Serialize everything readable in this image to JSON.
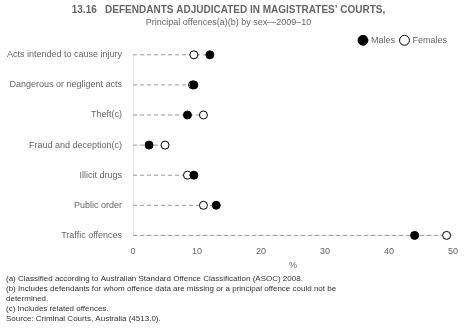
{
  "chart_data": {
    "type": "dot",
    "orientation": "horizontal",
    "title": "13.16   DEFENDANTS ADJUDICATED IN MAGISTRATES’ COURTS,",
    "subtitle": "Principal offences(a)(b) by sex—2009–10",
    "categories": [
      "Acts intended to cause injury",
      "Dangerous or negligent acts",
      "Theft(c)",
      "Fraud and deception(c)",
      "Illicit drugs",
      "Public order",
      "Traffic offences"
    ],
    "series": [
      {
        "name": "Males",
        "color": "black",
        "marker": "circle",
        "values": [
          12.0,
          9.5,
          8.5,
          2.5,
          9.5,
          13.0,
          44.0
        ]
      },
      {
        "name": "Females",
        "color": "white",
        "marker": "circle",
        "values": [
          9.5,
          9.3,
          11.0,
          5.0,
          8.5,
          11.0,
          49.0
        ]
      }
    ],
    "color": "#999999",
    "line_style": "dashed",
    "xlim": [
      0,
      50
    ],
    "xticks": [
      0,
      10,
      20,
      30,
      40,
      50
    ],
    "xlabel": "%",
    "grid": false,
    "legend": "upper right",
    "annotations": [
      "(a) Classified according to Australian Standard Offence Classification (ASOC) 2008.",
      "(b) Includes defendants for whom offence data are missing or a principal offence could not be",
      "determined.",
      "(c) Includes related offences.",
      "Source: Criminal Courts, Australia (4513.0)."
    ]
  }
}
